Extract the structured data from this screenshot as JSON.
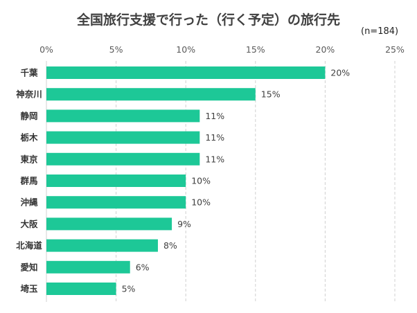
{
  "chart_data": {
    "type": "bar",
    "orientation": "horizontal",
    "title": "全国旅行支援で行った（行く予定）の旅行先",
    "annotation": "(n=184)",
    "categories": [
      "千葉",
      "神奈川",
      "静岡",
      "栃木",
      "東京",
      "群馬",
      "沖縄",
      "大阪",
      "北海道",
      "愛知",
      "埼玉"
    ],
    "values": [
      20,
      15,
      11,
      11,
      11,
      10,
      10,
      9,
      8,
      6,
      5
    ],
    "value_labels": [
      "20%",
      "15%",
      "11%",
      "11%",
      "11%",
      "10%",
      "10%",
      "9%",
      "8%",
      "6%",
      "5%"
    ],
    "xlim": [
      0,
      25
    ],
    "x_ticks": [
      "0%",
      "5%",
      "10%",
      "15%",
      "20%",
      "25%"
    ],
    "grid": "vertical dashed",
    "bar_color": "#1DC897",
    "axis_position": "top"
  }
}
